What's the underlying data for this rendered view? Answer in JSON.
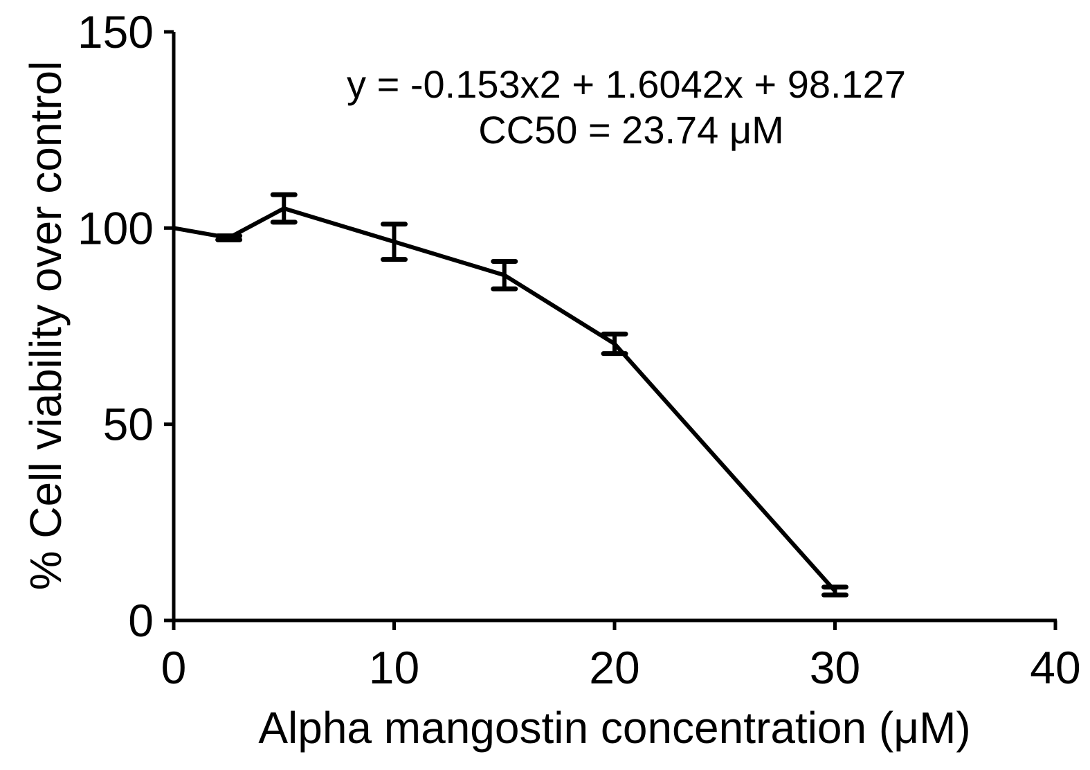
{
  "chart_data": {
    "type": "line",
    "title": "",
    "xlabel": "Alpha mangostin concentration (μM)",
    "ylabel": "% Cell viability over control",
    "xlim": [
      0,
      40
    ],
    "ylim": [
      0,
      150
    ],
    "xticks": [
      "0",
      "10",
      "20",
      "30",
      "40"
    ],
    "yticks": [
      "0",
      "50",
      "100",
      "150"
    ],
    "annotations": [
      "y = -0.153x2 + 1.6042x + 98.127",
      "CC50 = 23.74 μM"
    ],
    "grid": false,
    "legend": "none",
    "series": [
      {
        "x": [
          0,
          2.5,
          5,
          10,
          15,
          20,
          30
        ],
        "y": [
          100,
          97.5,
          105,
          96.5,
          88,
          70.5,
          7.5
        ],
        "err": [
          0,
          0.5,
          3.5,
          4.5,
          3.5,
          2.5,
          1
        ]
      }
    ]
  },
  "colors": {
    "line": "#000000",
    "background": "#ffffff"
  }
}
